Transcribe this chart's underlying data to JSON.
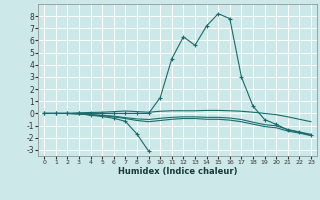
{
  "xlabel": "Humidex (Indice chaleur)",
  "xlim": [
    -0.5,
    23.5
  ],
  "ylim": [
    -3.5,
    9.0
  ],
  "xticks": [
    0,
    1,
    2,
    3,
    4,
    5,
    6,
    7,
    8,
    9,
    10,
    11,
    12,
    13,
    14,
    15,
    16,
    17,
    18,
    19,
    20,
    21,
    22,
    23
  ],
  "yticks": [
    -3,
    -2,
    -1,
    0,
    1,
    2,
    3,
    4,
    5,
    6,
    7,
    8
  ],
  "background_color": "#cce8e8",
  "grid_color": "#b8d8d8",
  "line_color": "#1a6b6b",
  "lines": [
    {
      "x": [
        0,
        1,
        2,
        3,
        4,
        5,
        6,
        7,
        8,
        9
      ],
      "y": [
        0,
        0,
        0,
        0,
        -0.15,
        -0.25,
        -0.4,
        -0.65,
        -1.7,
        -3.1
      ],
      "marker": "+"
    },
    {
      "x": [
        0,
        1,
        2,
        3,
        4,
        5,
        6,
        7,
        8,
        9,
        10,
        11,
        12,
        13,
        14,
        15,
        16,
        17,
        18,
        19,
        20,
        21,
        22,
        23
      ],
      "y": [
        0,
        0,
        0,
        0,
        0,
        0,
        0,
        0,
        0,
        0,
        1.3,
        4.5,
        6.3,
        5.6,
        7.2,
        8.2,
        7.8,
        3.0,
        0.6,
        -0.5,
        -0.9,
        -1.35,
        -1.55,
        -1.8
      ],
      "marker": "+"
    },
    {
      "x": [
        0,
        1,
        2,
        3,
        4,
        5,
        6,
        7,
        8,
        9,
        10,
        11,
        12,
        13,
        14,
        15,
        16,
        17,
        18,
        19,
        20,
        21,
        22,
        23
      ],
      "y": [
        0,
        0,
        0,
        0.05,
        0.08,
        0.1,
        0.15,
        0.2,
        0.15,
        0.1,
        0.18,
        0.22,
        0.22,
        0.22,
        0.25,
        0.25,
        0.22,
        0.18,
        0.1,
        0,
        -0.1,
        -0.28,
        -0.48,
        -0.68
      ],
      "marker": null
    },
    {
      "x": [
        0,
        1,
        2,
        3,
        4,
        5,
        6,
        7,
        8,
        9,
        10,
        11,
        12,
        13,
        14,
        15,
        16,
        17,
        18,
        19,
        20,
        21,
        22,
        23
      ],
      "y": [
        0,
        0,
        0,
        -0.05,
        -0.1,
        -0.15,
        -0.22,
        -0.35,
        -0.45,
        -0.5,
        -0.4,
        -0.32,
        -0.28,
        -0.28,
        -0.32,
        -0.32,
        -0.38,
        -0.5,
        -0.72,
        -0.92,
        -1.02,
        -1.32,
        -1.52,
        -1.72
      ],
      "marker": null
    },
    {
      "x": [
        0,
        1,
        2,
        3,
        4,
        5,
        6,
        7,
        8,
        9,
        10,
        11,
        12,
        13,
        14,
        15,
        16,
        17,
        18,
        19,
        20,
        21,
        22,
        23
      ],
      "y": [
        0,
        0,
        0,
        -0.05,
        -0.12,
        -0.18,
        -0.28,
        -0.42,
        -0.58,
        -0.68,
        -0.58,
        -0.48,
        -0.42,
        -0.42,
        -0.48,
        -0.48,
        -0.55,
        -0.68,
        -0.88,
        -1.08,
        -1.18,
        -1.45,
        -1.62,
        -1.82
      ],
      "marker": null
    }
  ]
}
